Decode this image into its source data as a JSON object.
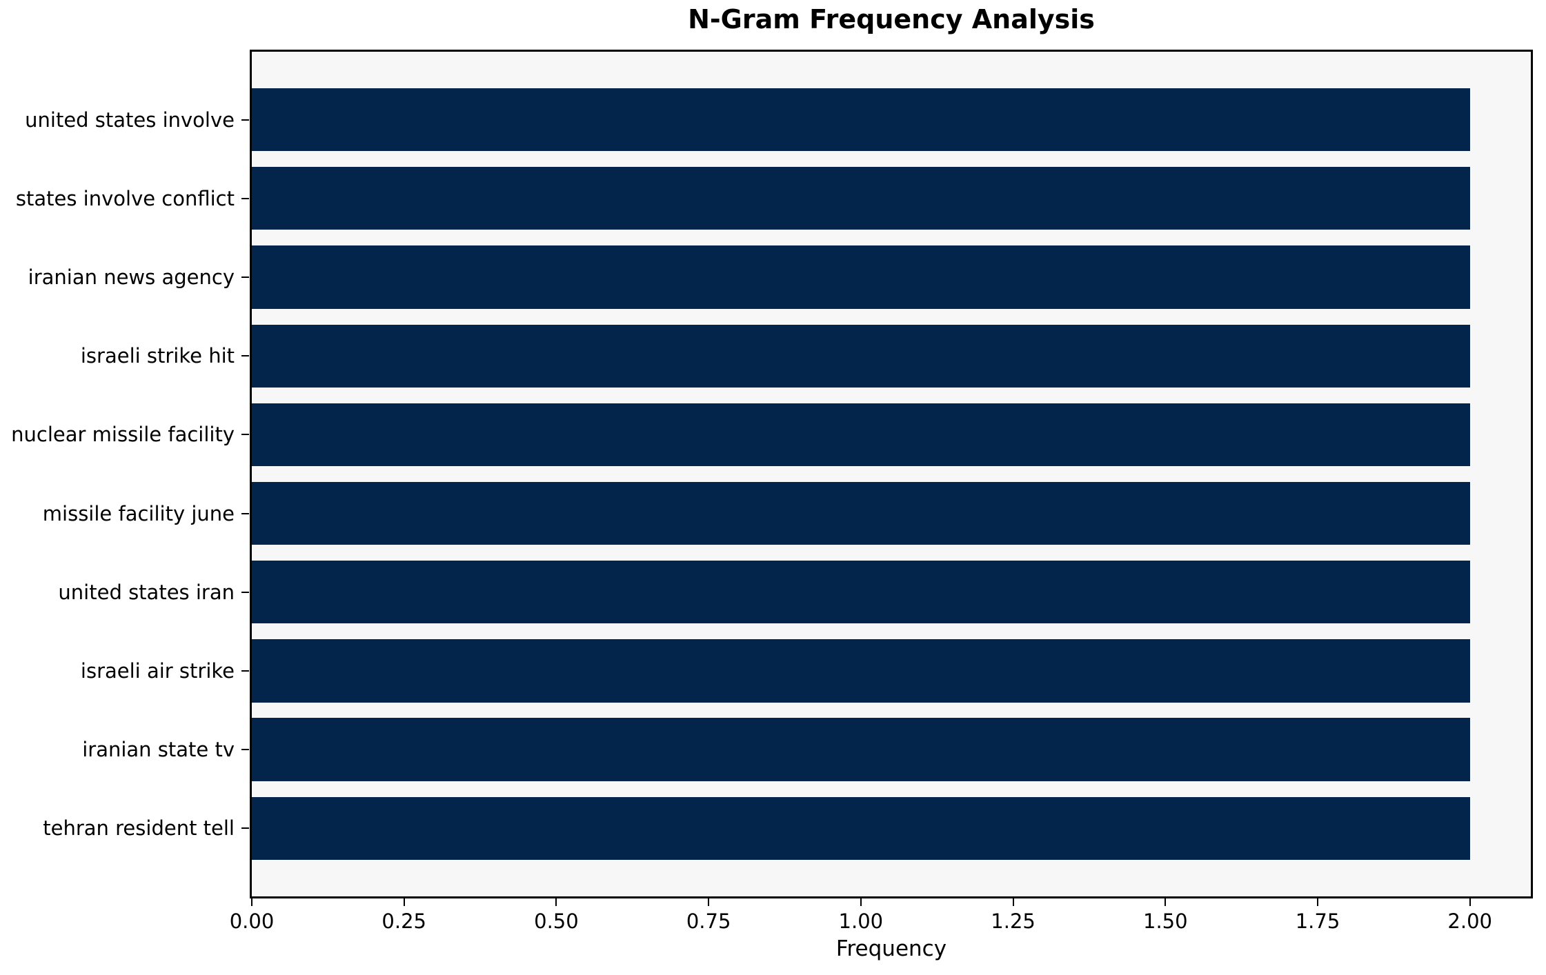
{
  "title": "N-Gram Frequency Analysis",
  "chart_data": {
    "type": "bar",
    "orientation": "horizontal",
    "title": "N-Gram Frequency Analysis",
    "xlabel": "Frequency",
    "ylabel": "",
    "categories": [
      "united states involve",
      "states involve conflict",
      "iranian news agency",
      "israeli strike hit",
      "nuclear missile facility",
      "missile facility june",
      "united states iran",
      "israeli air strike",
      "iranian state tv",
      "tehran resident tell"
    ],
    "values": [
      2,
      2,
      2,
      2,
      2,
      2,
      2,
      2,
      2,
      2
    ],
    "xlim": [
      0,
      2.1
    ],
    "xticks": [
      0,
      0.25,
      0.5,
      0.75,
      1,
      1.25,
      1.5,
      1.75,
      2
    ],
    "xtick_labels": [
      "0.00",
      "0.25",
      "0.50",
      "0.75",
      "1.00",
      "1.25",
      "1.50",
      "1.75",
      "2.00"
    ],
    "grid": false,
    "legend": null,
    "colors": {
      "bar": "#03254c",
      "plot_background": "#f7f7f7",
      "figure_background": "#ffffff",
      "spine": "#000000",
      "text": "#000000"
    }
  }
}
